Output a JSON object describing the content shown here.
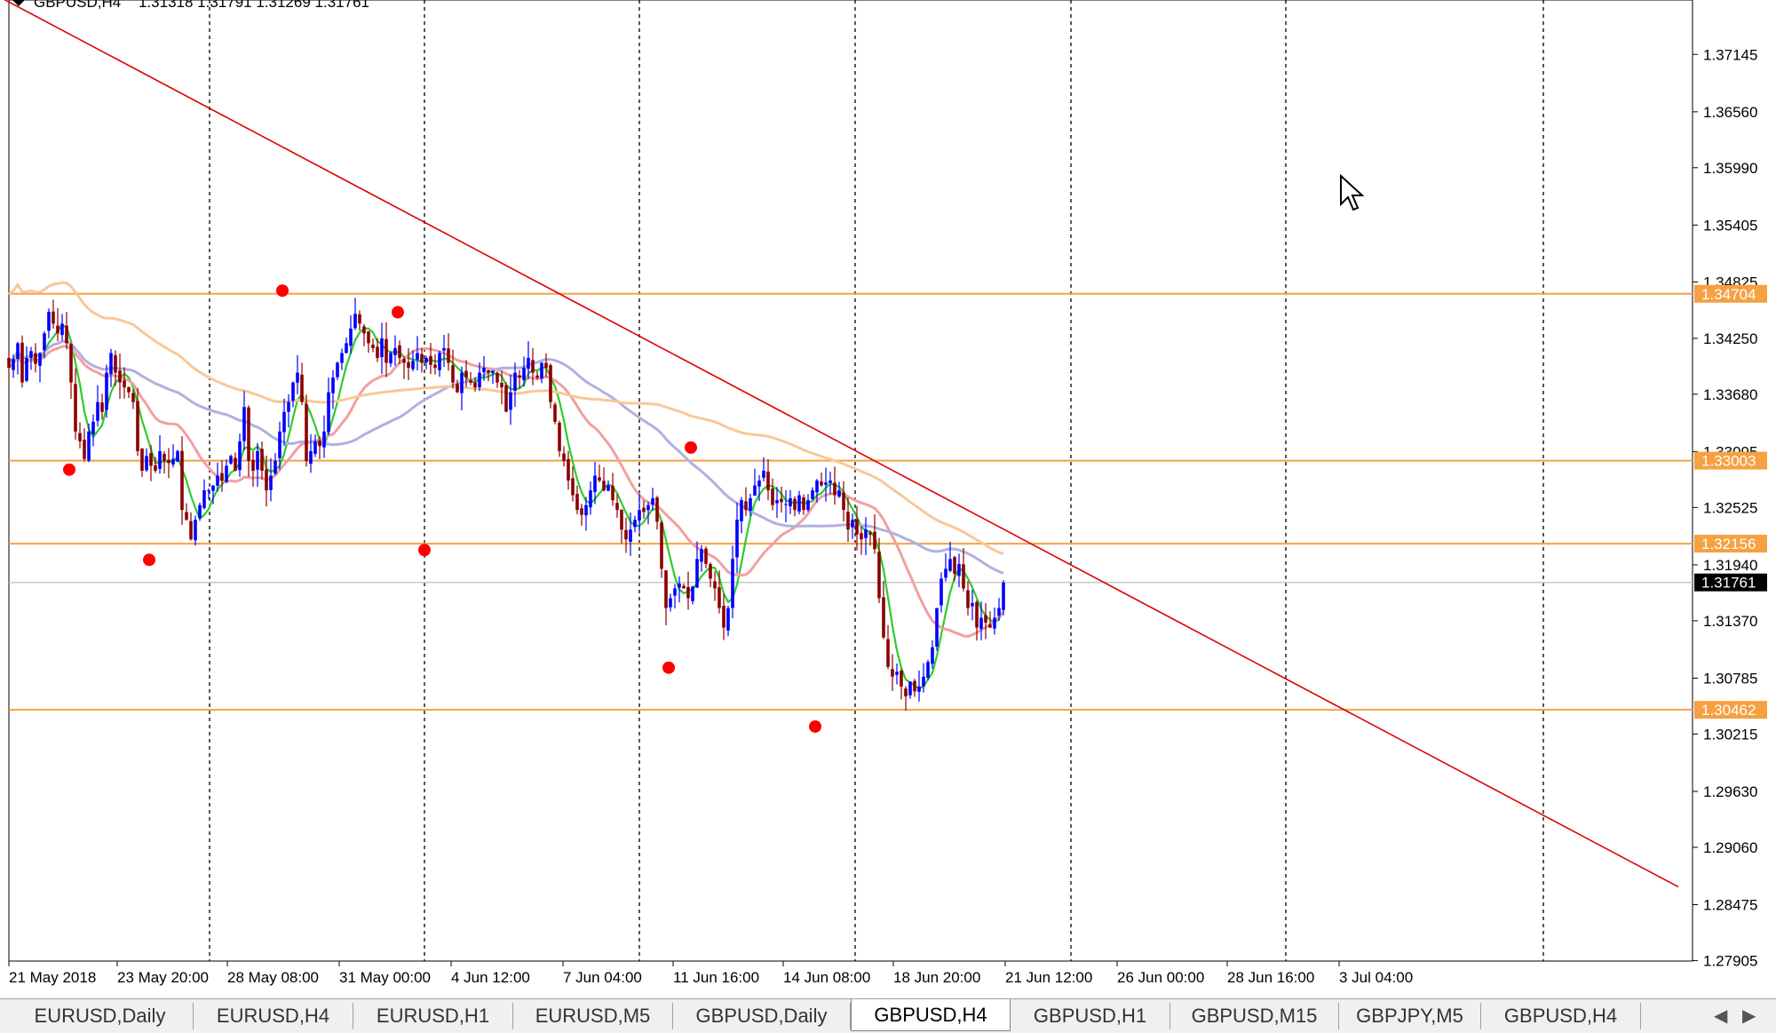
{
  "header": {
    "symbol_text": "GBPUSD,H4",
    "ohlc_text": "1.31318 1.31791 1.31269 1.31761"
  },
  "chart_data": {
    "type": "candlestick",
    "symbol": "GBPUSD",
    "timeframe": "H4",
    "ylim": [
      1.279,
      1.377
    ],
    "price_ticks": [
      "1.37145",
      "1.36560",
      "1.35990",
      "1.35405",
      "1.34825",
      "1.34250",
      "1.33680",
      "1.33095",
      "1.32525",
      "1.31940",
      "1.31370",
      "1.30785",
      "1.30215",
      "1.29630",
      "1.29060",
      "1.28475",
      "1.27905"
    ],
    "time_labels": [
      "21 May 2018",
      "23 May 20:00",
      "28 May 08:00",
      "31 May 00:00",
      "4 Jun 12:00",
      "7 Jun 04:00",
      "11 Jun 16:00",
      "14 Jun 08:00",
      "18 Jun 20:00",
      "21 Jun 12:00",
      "26 Jun 00:00",
      "28 Jun 16:00",
      "3 Jul 04:00"
    ],
    "horizontal_levels": [
      {
        "label": "1.34704",
        "price": 1.34704,
        "color": "#f5a142"
      },
      {
        "label": "1.33003",
        "price": 1.33003,
        "color": "#f5a142"
      },
      {
        "label": "1.32156",
        "price": 1.32156,
        "color": "#f5a142"
      },
      {
        "label": "1.30462",
        "price": 1.30462,
        "color": "#f5a142"
      }
    ],
    "current_price": {
      "label": "1.31761",
      "price": 1.31761
    },
    "trendline": {
      "start": {
        "bar": -5,
        "price": 1.378
      },
      "end": {
        "bar": 276,
        "price": 1.3016
      },
      "color": "#e00000"
    },
    "closes": [
      1.3395,
      1.3404,
      1.342,
      1.338,
      1.3405,
      1.3412,
      1.3399,
      1.341,
      1.343,
      1.3452,
      1.344,
      1.343,
      1.344,
      1.342,
      1.338,
      1.333,
      1.332,
      1.3302,
      1.333,
      1.334,
      1.336,
      1.335,
      1.339,
      1.341,
      1.339,
      1.338,
      1.3375,
      1.337,
      1.336,
      1.331,
      1.329,
      1.3305,
      1.3295,
      1.329,
      1.331,
      1.33,
      1.3298,
      1.3302,
      1.331,
      1.325,
      1.324,
      1.322,
      1.324,
      1.3255,
      1.327,
      1.327,
      1.3275,
      1.3285,
      1.328,
      1.3295,
      1.3305,
      1.329,
      1.332,
      1.3355,
      1.33,
      1.329,
      1.331,
      1.329,
      1.327,
      1.3285,
      1.33,
      1.333,
      1.335,
      1.336,
      1.338,
      1.339,
      1.336,
      1.33,
      1.331,
      1.332,
      1.3315,
      1.333,
      1.337,
      1.3385,
      1.34,
      1.341,
      1.342,
      1.3435,
      1.345,
      1.344,
      1.343,
      1.342,
      1.3415,
      1.3405,
      1.3425,
      1.34,
      1.341,
      1.3415,
      1.3405,
      1.34,
      1.3395,
      1.3402,
      1.341,
      1.34,
      1.3405,
      1.3398,
      1.3395,
      1.341,
      1.3415,
      1.34,
      1.338,
      1.337,
      1.339,
      1.3385,
      1.338,
      1.3375,
      1.339,
      1.3395,
      1.339,
      1.3392,
      1.338,
      1.3375,
      1.335,
      1.337,
      1.339,
      1.3385,
      1.3395,
      1.3405,
      1.339,
      1.3385,
      1.34,
      1.3395,
      1.336,
      1.334,
      1.331,
      1.33,
      1.328,
      1.3265,
      1.325,
      1.3245,
      1.3255,
      1.327,
      1.3285,
      1.328,
      1.327,
      1.3275,
      1.326,
      1.325,
      1.323,
      1.322,
      1.323,
      1.324,
      1.325,
      1.3248,
      1.3255,
      1.3262,
      1.3238,
      1.319,
      1.315,
      1.316,
      1.317,
      1.3175,
      1.317,
      1.316,
      1.3172,
      1.32,
      1.321,
      1.3195,
      1.318,
      1.317,
      1.315,
      1.313,
      1.315,
      1.32,
      1.324,
      1.326,
      1.325,
      1.3262,
      1.3275,
      1.328,
      1.329,
      1.327,
      1.3255,
      1.326,
      1.3258,
      1.3256,
      1.3262,
      1.325,
      1.3265,
      1.325,
      1.326,
      1.327,
      1.328,
      1.3275,
      1.3278,
      1.328,
      1.3265,
      1.327,
      1.325,
      1.323,
      1.324,
      1.3225,
      1.322,
      1.323,
      1.3225,
      1.321,
      1.316,
      1.312,
      1.309,
      1.308,
      1.3085,
      1.307,
      1.306,
      1.3075,
      1.3065,
      1.307,
      1.308,
      1.3095,
      1.311,
      1.315,
      1.318,
      1.319,
      1.32,
      1.3185,
      1.3195,
      1.317,
      1.315,
      1.3155,
      1.313,
      1.314,
      1.3135,
      1.313,
      1.314,
      1.315,
      1.3176
    ],
    "highs_marked": [
      {
        "bar": 60,
        "price": 1.347
      },
      {
        "bar": 86,
        "price": 1.3448
      },
      {
        "bar": 152,
        "price": 1.331
      }
    ],
    "lows_marked": [
      {
        "bar": 10,
        "price": 1.3302
      },
      {
        "bar": 28,
        "price": 1.321
      },
      {
        "bar": 90,
        "price": 1.322
      },
      {
        "bar": 145,
        "price": 1.31
      },
      {
        "bar": 178,
        "price": 1.304
      }
    ],
    "moving_averages": [
      {
        "period": 5,
        "color": "#2ecc2e"
      },
      {
        "period": 20,
        "color": "#f2a0a0"
      },
      {
        "period": 50,
        "color": "#b0b0e0"
      },
      {
        "period": 100,
        "color": "#f8c898"
      }
    ]
  },
  "tabs": [
    {
      "label": "EURUSD,Daily"
    },
    {
      "label": "EURUSD,H4"
    },
    {
      "label": "EURUSD,H1"
    },
    {
      "label": "EURUSD,M5"
    },
    {
      "label": "GBPUSD,Daily"
    },
    {
      "label": "GBPUSD,H4",
      "active": true
    },
    {
      "label": "GBPUSD,H1"
    },
    {
      "label": "GBPUSD,M15"
    },
    {
      "label": "GBPJPY,M5"
    },
    {
      "label": "GBPUSD,H4"
    }
  ],
  "colors": {
    "bull": "#0000ff",
    "bear": "#8b0000",
    "grid": "#000000",
    "level": "#f5a142",
    "trend": "#e00000",
    "marker": "#ff0000"
  }
}
